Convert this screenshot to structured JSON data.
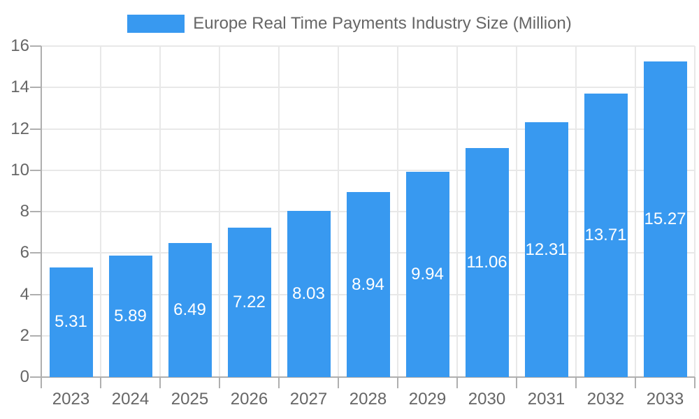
{
  "legend": {
    "label": "Europe Real Time Payments Industry Size (Million)"
  },
  "chart_data": {
    "type": "bar",
    "title": "Europe Real Time Payments Industry Size (Million)",
    "categories": [
      "2023",
      "2024",
      "2025",
      "2026",
      "2027",
      "2028",
      "2029",
      "2030",
      "2031",
      "2032",
      "2033"
    ],
    "series": [
      {
        "name": "Europe Real Time Payments Industry Size (Million)",
        "values": [
          5.31,
          5.89,
          6.49,
          7.22,
          8.03,
          8.94,
          9.94,
          11.06,
          12.31,
          13.71,
          15.27
        ]
      }
    ],
    "value_labels": [
      "5.31",
      "5.89",
      "6.49",
      "7.22",
      "8.03",
      "8.94",
      "9.94",
      "11.06",
      "12.31",
      "13.71",
      "15.27"
    ],
    "value_label_position": "inside-center",
    "xlabel": "",
    "ylabel": "",
    "ylim": [
      0,
      16
    ],
    "yticks": [
      0,
      2,
      4,
      6,
      8,
      10,
      12,
      14,
      16
    ],
    "grid": "both",
    "legend_position": "top",
    "colors": {
      "bar": "#3899F0",
      "text": "#666666",
      "value_label_text": "#FFFFFF",
      "grid": "#E8E8E8",
      "axis": "#AFAFAF",
      "background": "#FFFFFF"
    }
  }
}
